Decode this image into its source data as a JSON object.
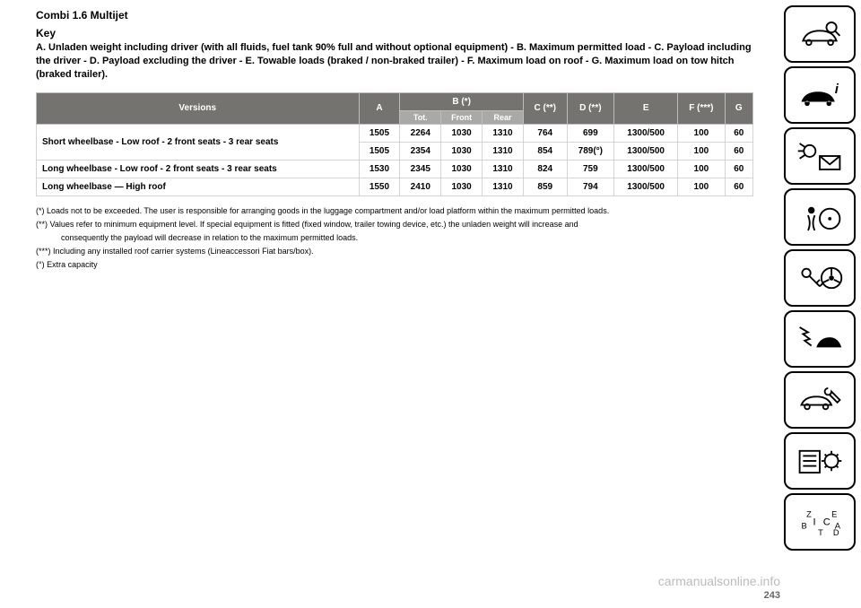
{
  "title": "Combi 1.6 Multijet",
  "subtitle": "Key",
  "key_text": "A. Unladen weight including driver (with all fluids, fuel tank 90% full and without optional equipment) - B. Maximum permitted load - C. Payload including the driver - D. Payload excluding the driver - E. Towable loads (braked / non-braked trailer) - F. Maximum load on roof - G. Maximum load on tow hitch (braked trailer).",
  "table": {
    "headers": {
      "versions": "Versions",
      "a": "A",
      "b": "B (*)",
      "b_tot": "Tot.",
      "b_front": "Front",
      "b_rear": "Rear",
      "c": "C (**)",
      "d": "D (**)",
      "e": "E",
      "f": "F (***)",
      "g": "G"
    },
    "rows": [
      {
        "v": "Short wheelbase - Low roof - 2 front seats - 3 rear seats",
        "a": "1505",
        "tot": "2264",
        "front": "1030",
        "rear": "1310",
        "c": "764",
        "d": "699",
        "e": "1300/500",
        "f": "100",
        "g": "60"
      },
      {
        "v": "",
        "a": "1505",
        "tot": "2354",
        "front": "1030",
        "rear": "1310",
        "c": "854",
        "d": "789(°)",
        "e": "1300/500",
        "f": "100",
        "g": "60"
      },
      {
        "v": "Long wheelbase - Low roof - 2 front seats - 3 rear seats",
        "a": "1530",
        "tot": "2345",
        "front": "1030",
        "rear": "1310",
        "c": "824",
        "d": "759",
        "e": "1300/500",
        "f": "100",
        "g": "60"
      },
      {
        "v": "Long wheelbase — High roof",
        "a": "1550",
        "tot": "2410",
        "front": "1030",
        "rear": "1310",
        "c": "859",
        "d": "794",
        "e": "1300/500",
        "f": "100",
        "g": "60"
      }
    ]
  },
  "notes": {
    "n1": "(*) Loads not to be exceeded. The user is responsible for arranging goods in the luggage compartment and/or load platform within the maximum permitted loads.",
    "n2": "(**) Values refer to minimum equipment level. If special equipment is fitted (fixed window, trailer towing device, etc.) the unladen weight will increase and",
    "n2b": "consequently the payload will decrease in relation to the maximum permitted loads.",
    "n3": "(***) Including any installed roof carrier systems (Lineaccessori Fiat bars/box).",
    "n4": "(°) Extra capacity"
  },
  "page_number": "243",
  "watermark": "carmanualsonline.info",
  "sidebar": [
    {
      "name": "car-search-icon"
    },
    {
      "name": "car-info-icon"
    },
    {
      "name": "light-mail-icon"
    },
    {
      "name": "airbag-icon"
    },
    {
      "name": "key-wheel-icon"
    },
    {
      "name": "car-crash-icon"
    },
    {
      "name": "car-wrench-icon"
    },
    {
      "name": "spec-gear-icon"
    },
    {
      "name": "alphabet-icon"
    }
  ]
}
